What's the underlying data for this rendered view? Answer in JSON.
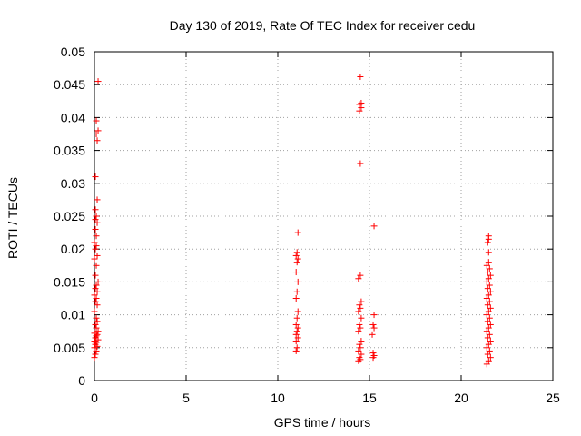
{
  "chart_data": {
    "type": "scatter",
    "title": "Day 130 of 2019, Rate Of TEC Index for receiver cedu",
    "xlabel": "GPS time / hours",
    "ylabel": "ROTI / TECUs",
    "xlim": [
      0,
      25
    ],
    "ylim": [
      0,
      0.05
    ],
    "xticks": [
      0,
      5,
      10,
      15,
      20,
      25
    ],
    "xtick_labels": [
      "0",
      "5",
      "10",
      "15",
      "20",
      "25"
    ],
    "yticks": [
      0,
      0.005,
      0.01,
      0.015,
      0.02,
      0.025,
      0.03,
      0.035,
      0.04,
      0.045,
      0.05
    ],
    "ytick_labels": [
      "0",
      "0.005",
      "0.01",
      "0.015",
      "0.02",
      "0.025",
      "0.03",
      "0.035",
      "0.04",
      "0.045",
      "0.05"
    ],
    "grid": true,
    "marker": "+",
    "color": "#ff0000",
    "series": [
      {
        "name": "ROTI",
        "points": [
          [
            0.0,
            0.0035
          ],
          [
            0.05,
            0.004
          ],
          [
            0.1,
            0.0045
          ],
          [
            0.0,
            0.005
          ],
          [
            0.15,
            0.0052
          ],
          [
            0.05,
            0.0055
          ],
          [
            0.1,
            0.0058
          ],
          [
            0.0,
            0.006
          ],
          [
            0.2,
            0.0062
          ],
          [
            0.05,
            0.0065
          ],
          [
            0.1,
            0.0068
          ],
          [
            0.15,
            0.007
          ],
          [
            0.0,
            0.0072
          ],
          [
            0.2,
            0.0075
          ],
          [
            0.1,
            0.008
          ],
          [
            0.05,
            0.0085
          ],
          [
            0.15,
            0.009
          ],
          [
            0.1,
            0.0095
          ],
          [
            0.0,
            0.0105
          ],
          [
            0.15,
            0.0115
          ],
          [
            0.05,
            0.012
          ],
          [
            0.1,
            0.0125
          ],
          [
            0.0,
            0.013
          ],
          [
            0.15,
            0.0135
          ],
          [
            0.05,
            0.014
          ],
          [
            0.1,
            0.0145
          ],
          [
            0.2,
            0.015
          ],
          [
            0.05,
            0.016
          ],
          [
            0.1,
            0.0175
          ],
          [
            0.0,
            0.0185
          ],
          [
            0.15,
            0.019
          ],
          [
            0.05,
            0.02
          ],
          [
            0.1,
            0.0205
          ],
          [
            0.0,
            0.021
          ],
          [
            0.1,
            0.022
          ],
          [
            0.05,
            0.023
          ],
          [
            0.15,
            0.024
          ],
          [
            0.05,
            0.0245
          ],
          [
            0.1,
            0.025
          ],
          [
            0.05,
            0.026
          ],
          [
            0.15,
            0.0275
          ],
          [
            0.05,
            0.031
          ],
          [
            0.15,
            0.0365
          ],
          [
            0.1,
            0.0375
          ],
          [
            0.2,
            0.038
          ],
          [
            0.1,
            0.0395
          ],
          [
            0.2,
            0.0455
          ],
          [
            11.0,
            0.0045
          ],
          [
            11.05,
            0.005
          ],
          [
            11.0,
            0.006
          ],
          [
            11.1,
            0.0065
          ],
          [
            11.0,
            0.007
          ],
          [
            11.05,
            0.0075
          ],
          [
            11.1,
            0.008
          ],
          [
            11.0,
            0.0085
          ],
          [
            11.05,
            0.0095
          ],
          [
            11.1,
            0.0105
          ],
          [
            11.0,
            0.0125
          ],
          [
            11.05,
            0.0135
          ],
          [
            11.1,
            0.015
          ],
          [
            11.0,
            0.0165
          ],
          [
            11.05,
            0.018
          ],
          [
            11.1,
            0.0185
          ],
          [
            11.0,
            0.019
          ],
          [
            11.05,
            0.0195
          ],
          [
            11.1,
            0.0225
          ],
          [
            14.4,
            0.003
          ],
          [
            14.5,
            0.0032
          ],
          [
            14.45,
            0.0035
          ],
          [
            14.55,
            0.004
          ],
          [
            14.4,
            0.0045
          ],
          [
            14.5,
            0.005
          ],
          [
            14.45,
            0.0055
          ],
          [
            14.55,
            0.006
          ],
          [
            14.4,
            0.0075
          ],
          [
            14.5,
            0.008
          ],
          [
            14.45,
            0.0085
          ],
          [
            14.55,
            0.0095
          ],
          [
            14.4,
            0.0105
          ],
          [
            14.5,
            0.011
          ],
          [
            14.45,
            0.0115
          ],
          [
            14.55,
            0.012
          ],
          [
            14.4,
            0.0155
          ],
          [
            14.5,
            0.016
          ],
          [
            14.5,
            0.033
          ],
          [
            14.45,
            0.041
          ],
          [
            14.55,
            0.0415
          ],
          [
            14.45,
            0.042
          ],
          [
            14.55,
            0.0422
          ],
          [
            14.5,
            0.0462
          ],
          [
            15.2,
            0.0035
          ],
          [
            15.25,
            0.0038
          ],
          [
            15.2,
            0.0042
          ],
          [
            15.15,
            0.007
          ],
          [
            15.25,
            0.008
          ],
          [
            15.2,
            0.0085
          ],
          [
            15.25,
            0.01
          ],
          [
            15.25,
            0.0235
          ],
          [
            21.4,
            0.0025
          ],
          [
            21.5,
            0.003
          ],
          [
            21.6,
            0.0035
          ],
          [
            21.45,
            0.004
          ],
          [
            21.55,
            0.0045
          ],
          [
            21.4,
            0.005
          ],
          [
            21.5,
            0.0055
          ],
          [
            21.6,
            0.006
          ],
          [
            21.45,
            0.0065
          ],
          [
            21.55,
            0.007
          ],
          [
            21.4,
            0.0075
          ],
          [
            21.5,
            0.008
          ],
          [
            21.6,
            0.0085
          ],
          [
            21.45,
            0.009
          ],
          [
            21.55,
            0.0095
          ],
          [
            21.4,
            0.01
          ],
          [
            21.5,
            0.0105
          ],
          [
            21.6,
            0.011
          ],
          [
            21.45,
            0.0115
          ],
          [
            21.55,
            0.012
          ],
          [
            21.4,
            0.0125
          ],
          [
            21.5,
            0.013
          ],
          [
            21.6,
            0.0135
          ],
          [
            21.45,
            0.014
          ],
          [
            21.55,
            0.0145
          ],
          [
            21.4,
            0.015
          ],
          [
            21.5,
            0.0155
          ],
          [
            21.6,
            0.016
          ],
          [
            21.45,
            0.0165
          ],
          [
            21.55,
            0.017
          ],
          [
            21.4,
            0.0175
          ],
          [
            21.5,
            0.018
          ],
          [
            21.5,
            0.0195
          ],
          [
            21.45,
            0.021
          ],
          [
            21.5,
            0.0215
          ],
          [
            21.5,
            0.022
          ]
        ]
      }
    ]
  }
}
